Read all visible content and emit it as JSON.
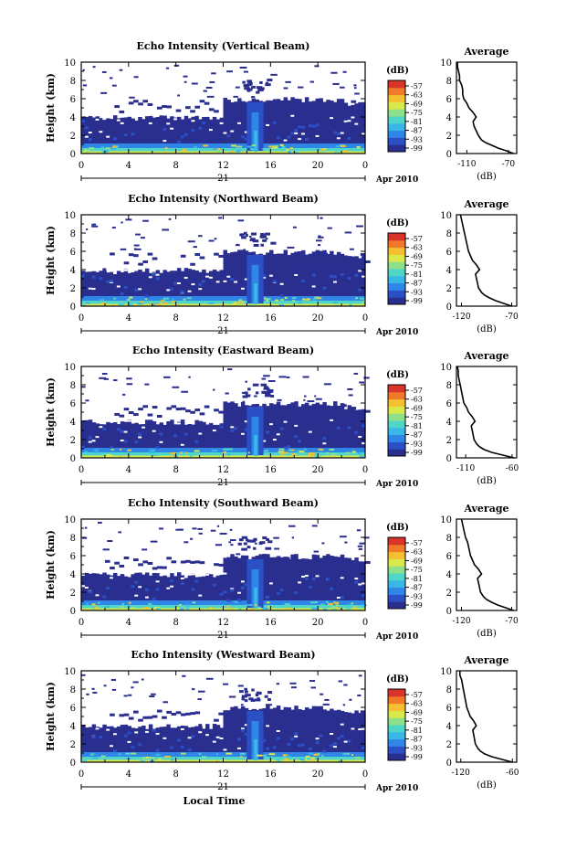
{
  "figure": {
    "xlabel": "Local Time",
    "date_suffix": "Apr 2010",
    "day_label": "21",
    "ylabel": "Height (km)",
    "colorbar_unit": "(dB)",
    "profile_title": "Average",
    "profile_xlabel": "(dB)"
  },
  "colors": {
    "colorbar_stops": [
      "#2a2f8f",
      "#2b4fc4",
      "#2f86e6",
      "#39b8e8",
      "#4fd6c8",
      "#8fe08a",
      "#d9e84a",
      "#f5c030",
      "#f07a2a",
      "#d8342a"
    ],
    "profile_line": "#000000"
  },
  "chart_data": [
    {
      "type": "heatmap",
      "title": "Echo Intensity (Vertical Beam)",
      "xlabel": "",
      "ylabel": "Height (km)",
      "xlim": [
        0,
        24
      ],
      "ylim": [
        0,
        10
      ],
      "xticks": [
        "0",
        "4",
        "8",
        "12",
        "16",
        "20",
        "0"
      ],
      "yticks": [
        "0",
        "2",
        "4",
        "6",
        "8",
        "10"
      ],
      "colorbar": {
        "unit": "(dB)",
        "ticks": [
          "-57",
          "-63",
          "-69",
          "-75",
          "-81",
          "-87",
          "-93",
          "-99"
        ]
      },
      "profile": {
        "title": "Average",
        "xlabel": "(dB)",
        "xlim": [
          -120,
          -62
        ],
        "xticks": [
          "-110",
          "-70"
        ],
        "ylim": [
          0,
          10
        ],
        "height": [
          0,
          0.3,
          0.6,
          0.9,
          1.2,
          1.5,
          2,
          2.5,
          3,
          3.5,
          4,
          4.5,
          5,
          5.5,
          6,
          6.5,
          7,
          7.5,
          8,
          8.5,
          9,
          9.5,
          10
        ],
        "value": [
          -65,
          -72,
          -80,
          -86,
          -92,
          -96,
          -99,
          -101,
          -103,
          -104,
          -101,
          -104,
          -108,
          -110,
          -113,
          -114,
          -114,
          -115,
          -117,
          -117,
          -118,
          -119,
          -119
        ]
      }
    },
    {
      "type": "heatmap",
      "title": "Echo Intensity (Northward Beam)",
      "xlabel": "",
      "ylabel": "Height (km)",
      "xlim": [
        0,
        24
      ],
      "ylim": [
        0,
        10
      ],
      "xticks": [
        "0",
        "4",
        "8",
        "12",
        "16",
        "20",
        "0"
      ],
      "yticks": [
        "0",
        "2",
        "4",
        "6",
        "8",
        "10"
      ],
      "colorbar": {
        "unit": "(dB)",
        "ticks": [
          "-57",
          "-63",
          "-69",
          "-75",
          "-81",
          "-87",
          "-93",
          "-99"
        ]
      },
      "profile": {
        "title": "Average",
        "xlabel": "(dB)",
        "xlim": [
          -125,
          -65
        ],
        "xticks": [
          "-120",
          "-70"
        ],
        "ylim": [
          0,
          10
        ],
        "height": [
          0,
          0.3,
          0.6,
          0.9,
          1.2,
          1.5,
          2,
          2.5,
          3,
          3.5,
          4,
          4.5,
          5,
          5.5,
          6,
          6.5,
          7,
          7.5,
          8,
          8.5,
          9,
          9.5,
          10
        ],
        "value": [
          -70,
          -78,
          -86,
          -92,
          -97,
          -100,
          -103,
          -104,
          -105,
          -106,
          -102,
          -105,
          -109,
          -111,
          -113,
          -114,
          -115,
          -116,
          -117,
          -118,
          -119,
          -120,
          -121
        ]
      }
    },
    {
      "type": "heatmap",
      "title": "Echo Intensity (Eastward Beam)",
      "xlabel": "",
      "ylabel": "Height (km)",
      "xlim": [
        0,
        24
      ],
      "ylim": [
        0,
        10
      ],
      "xticks": [
        "0",
        "4",
        "8",
        "12",
        "16",
        "20",
        "0"
      ],
      "yticks": [
        "0",
        "2",
        "4",
        "6",
        "8",
        "10"
      ],
      "colorbar": {
        "unit": "(dB)",
        "ticks": [
          "-57",
          "-63",
          "-69",
          "-75",
          "-81",
          "-87",
          "-93",
          "-99"
        ]
      },
      "profile": {
        "title": "Average",
        "xlabel": "(dB)",
        "xlim": [
          -120,
          -55
        ],
        "xticks": [
          "-110",
          "-60"
        ],
        "ylim": [
          0,
          10
        ],
        "height": [
          0,
          0.3,
          0.6,
          0.9,
          1.2,
          1.5,
          2,
          2.5,
          3,
          3.5,
          4,
          4.5,
          5,
          5.5,
          6,
          6.5,
          7,
          7.5,
          8,
          8.5,
          9,
          9.5,
          10
        ],
        "value": [
          -58,
          -70,
          -82,
          -90,
          -95,
          -98,
          -101,
          -102,
          -103,
          -104,
          -100,
          -103,
          -107,
          -109,
          -112,
          -113,
          -114,
          -115,
          -116,
          -117,
          -118,
          -118,
          -119
        ]
      }
    },
    {
      "type": "heatmap",
      "title": "Echo Intensity (Southward Beam)",
      "xlabel": "",
      "ylabel": "Height (km)",
      "xlim": [
        0,
        24
      ],
      "ylim": [
        0,
        10
      ],
      "xticks": [
        "0",
        "4",
        "8",
        "12",
        "16",
        "20",
        "0"
      ],
      "yticks": [
        "0",
        "2",
        "4",
        "6",
        "8",
        "10"
      ],
      "colorbar": {
        "unit": "(dB)",
        "ticks": [
          "-57",
          "-63",
          "-69",
          "-75",
          "-81",
          "-87",
          "-93",
          "-99"
        ]
      },
      "profile": {
        "title": "Average",
        "xlabel": "(dB)",
        "xlim": [
          -125,
          -65
        ],
        "xticks": [
          "-120",
          "-70"
        ],
        "ylim": [
          0,
          10
        ],
        "height": [
          0,
          0.3,
          0.6,
          0.9,
          1.2,
          1.5,
          2,
          2.5,
          3,
          3.5,
          4,
          4.5,
          5,
          5.5,
          6,
          6.5,
          7,
          7.5,
          8,
          8.5,
          9,
          9.5,
          10
        ],
        "value": [
          -68,
          -76,
          -84,
          -90,
          -95,
          -98,
          -101,
          -102,
          -103,
          -104,
          -100,
          -103,
          -107,
          -109,
          -111,
          -112,
          -113,
          -114,
          -116,
          -117,
          -118,
          -119,
          -120
        ]
      }
    },
    {
      "type": "heatmap",
      "title": "Echo Intensity (Westward Beam)",
      "xlabel": "Local Time",
      "ylabel": "Height (km)",
      "xlim": [
        0,
        24
      ],
      "ylim": [
        0,
        10
      ],
      "xticks": [
        "0",
        "4",
        "8",
        "12",
        "16",
        "20",
        "0"
      ],
      "yticks": [
        "0",
        "2",
        "4",
        "6",
        "8",
        "10"
      ],
      "colorbar": {
        "unit": "(dB)",
        "ticks": [
          "-57",
          "-63",
          "-69",
          "-75",
          "-81",
          "-87",
          "-93",
          "-99"
        ]
      },
      "profile": {
        "title": "Average",
        "xlabel": "(dB)",
        "xlim": [
          -125,
          -55
        ],
        "xticks": [
          "-120",
          "-60"
        ],
        "ylim": [
          0,
          10
        ],
        "height": [
          0,
          0.3,
          0.6,
          0.9,
          1.2,
          1.5,
          2,
          2.5,
          3,
          3.5,
          4,
          4.5,
          5,
          5.5,
          6,
          6.5,
          7,
          7.5,
          8,
          8.5,
          9,
          9.5,
          10
        ],
        "value": [
          -60,
          -72,
          -84,
          -92,
          -97,
          -100,
          -103,
          -104,
          -105,
          -106,
          -102,
          -105,
          -109,
          -111,
          -113,
          -114,
          -115,
          -116,
          -117,
          -118,
          -119,
          -121,
          -121
        ]
      }
    }
  ]
}
